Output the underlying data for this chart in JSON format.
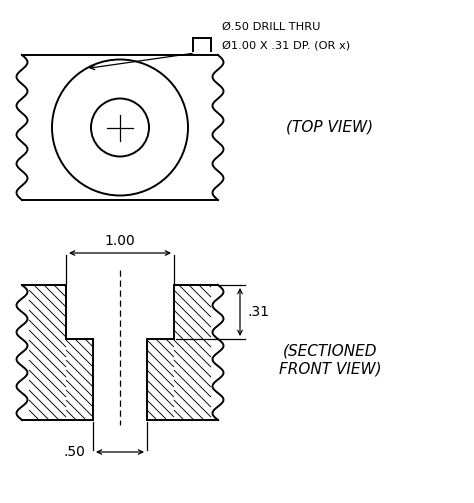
{
  "bg_color": "#ffffff",
  "line_color": "#000000",
  "fig_width": 4.74,
  "fig_height": 5.03,
  "dpi": 100,
  "annotations": {
    "drill_thru": "Ø.50 DRILL THRU",
    "counterbore": "Ø1.00 X .31 DP. (OR x)",
    "dim_100": "1.00",
    "dim_031": ".31",
    "dim_050": ".50"
  },
  "top_view_label": "(TOP VIEW)",
  "bottom_view_label": "(SECTIONED\nFRONT VIEW)"
}
